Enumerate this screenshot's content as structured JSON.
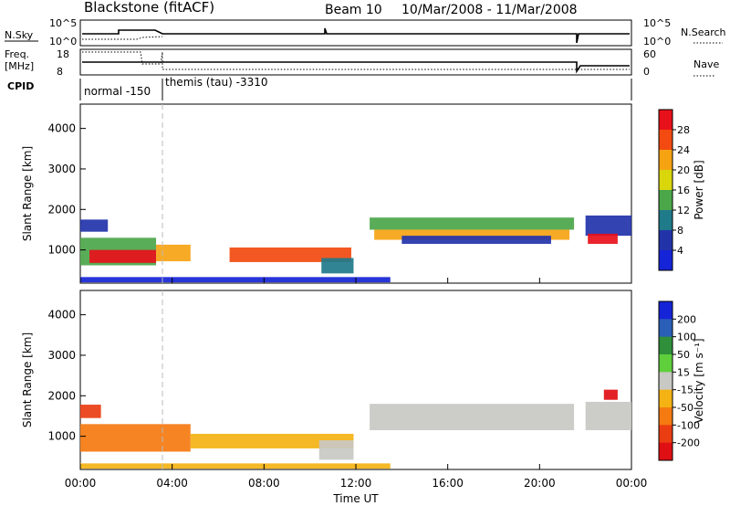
{
  "header": {
    "station": "Blackstone (fitACF)",
    "beam": "Beam 10",
    "date_range": "10/Mar/2008 - 11/Mar/2008"
  },
  "noise_panel": {
    "left_label": "N.Sky",
    "right_label": "N.Search",
    "left_ticks": [
      "10^5",
      "10^0"
    ],
    "right_ticks": [
      "10^5",
      "10^0"
    ]
  },
  "freq_panel": {
    "left_label_line1": "Freq.",
    "left_label_line2": "[MHz]",
    "left_ticks": [
      "18",
      "8"
    ],
    "right_label": "Nave",
    "right_ticks": [
      "60",
      "0"
    ]
  },
  "cpid_panel": {
    "label": "CPID",
    "modes": [
      {
        "name": "normal -150"
      },
      {
        "name": "themis (tau) -3310"
      }
    ]
  },
  "power_colorbar": {
    "label": "Power [dB]",
    "ticks": [
      "28",
      "24",
      "20",
      "16",
      "12",
      "8",
      "4"
    ],
    "colors": [
      "#e8101a",
      "#f24a10",
      "#f6a312",
      "#d9d60c",
      "#4ca64a",
      "#1f7a8a",
      "#2233aa",
      "#1524d6"
    ]
  },
  "velocity_colorbar": {
    "label": "Velocity [m s⁻¹]",
    "ticks": [
      "200",
      "100",
      "50",
      "15",
      "-15",
      "-50",
      "-100",
      "-200"
    ],
    "colors": [
      "#1524d6",
      "#2a5fb8",
      "#2f8f3a",
      "#5fcf3c",
      "#c8c8c4",
      "#f4b213",
      "#f57a10",
      "#ea3d12",
      "#e00f14"
    ]
  },
  "chart_data": [
    {
      "type": "heatmap",
      "name": "power",
      "ylabel": "Slant Range [km]",
      "xlabel": "Time UT",
      "x_ticks": [
        "00:00",
        "04:00",
        "08:00",
        "12:00",
        "16:00",
        "20:00",
        "00:00"
      ],
      "xlim_hours": [
        0,
        24
      ],
      "y_ticks": [
        "4000",
        "3000",
        "2000",
        "1000"
      ],
      "ylim": [
        180,
        4600
      ],
      "regions": [
        {
          "t0": 0.0,
          "t1": 1.2,
          "r0": 1450,
          "r1": 1750,
          "color": "#2233aa"
        },
        {
          "t0": 0.0,
          "t1": 3.3,
          "r0": 620,
          "r1": 1300,
          "color": "#4ca64a"
        },
        {
          "t0": 0.4,
          "t1": 3.3,
          "r0": 680,
          "r1": 1000,
          "color": "#e8101a"
        },
        {
          "t0": 3.3,
          "t1": 4.8,
          "r0": 720,
          "r1": 1130,
          "color": "#f6a312"
        },
        {
          "t0": 6.5,
          "t1": 11.8,
          "r0": 700,
          "r1": 1060,
          "color": "#f24a10"
        },
        {
          "t0": 10.5,
          "t1": 11.9,
          "r0": 420,
          "r1": 800,
          "color": "#1f7a8a"
        },
        {
          "t0": 12.6,
          "t1": 21.5,
          "r0": 1500,
          "r1": 1800,
          "color": "#4ca64a"
        },
        {
          "t0": 12.8,
          "t1": 21.3,
          "r0": 1250,
          "r1": 1500,
          "color": "#f6a312"
        },
        {
          "t0": 14.0,
          "t1": 20.5,
          "r0": 1150,
          "r1": 1350,
          "color": "#2233aa"
        },
        {
          "t0": 22.0,
          "t1": 24.0,
          "r0": 1350,
          "r1": 1850,
          "color": "#2233aa"
        },
        {
          "t0": 22.1,
          "t1": 23.4,
          "r0": 1150,
          "r1": 1400,
          "color": "#e8101a"
        },
        {
          "t0": 0.0,
          "t1": 13.5,
          "r0": 200,
          "r1": 330,
          "color": "#1524d6"
        }
      ]
    },
    {
      "type": "heatmap",
      "name": "velocity",
      "ylabel": "Slant Range [km]",
      "xlabel": "Time UT",
      "x_ticks": [
        "00:00",
        "04:00",
        "08:00",
        "12:00",
        "16:00",
        "20:00",
        "00:00"
      ],
      "xlim_hours": [
        0,
        24
      ],
      "y_ticks": [
        "4000",
        "3000",
        "2000",
        "1000"
      ],
      "ylim": [
        180,
        4600
      ],
      "regions": [
        {
          "t0": 0.0,
          "t1": 0.9,
          "r0": 1450,
          "r1": 1780,
          "color": "#ea3d12"
        },
        {
          "t0": 0.0,
          "t1": 4.8,
          "r0": 620,
          "r1": 1300,
          "color": "#f57a10"
        },
        {
          "t0": 4.8,
          "t1": 11.9,
          "r0": 700,
          "r1": 1060,
          "color": "#f4b213"
        },
        {
          "t0": 10.4,
          "t1": 11.9,
          "r0": 420,
          "r1": 900,
          "color": "#c8c8c4"
        },
        {
          "t0": 12.6,
          "t1": 21.5,
          "r0": 1150,
          "r1": 1800,
          "color": "#c8c8c4"
        },
        {
          "t0": 22.0,
          "t1": 24.0,
          "r0": 1150,
          "r1": 1850,
          "color": "#c8c8c4"
        },
        {
          "t0": 22.8,
          "t1": 23.4,
          "r0": 1900,
          "r1": 2150,
          "color": "#e00f14"
        },
        {
          "t0": 0.0,
          "t1": 13.5,
          "r0": 200,
          "r1": 330,
          "color": "#f4b213"
        }
      ]
    }
  ]
}
